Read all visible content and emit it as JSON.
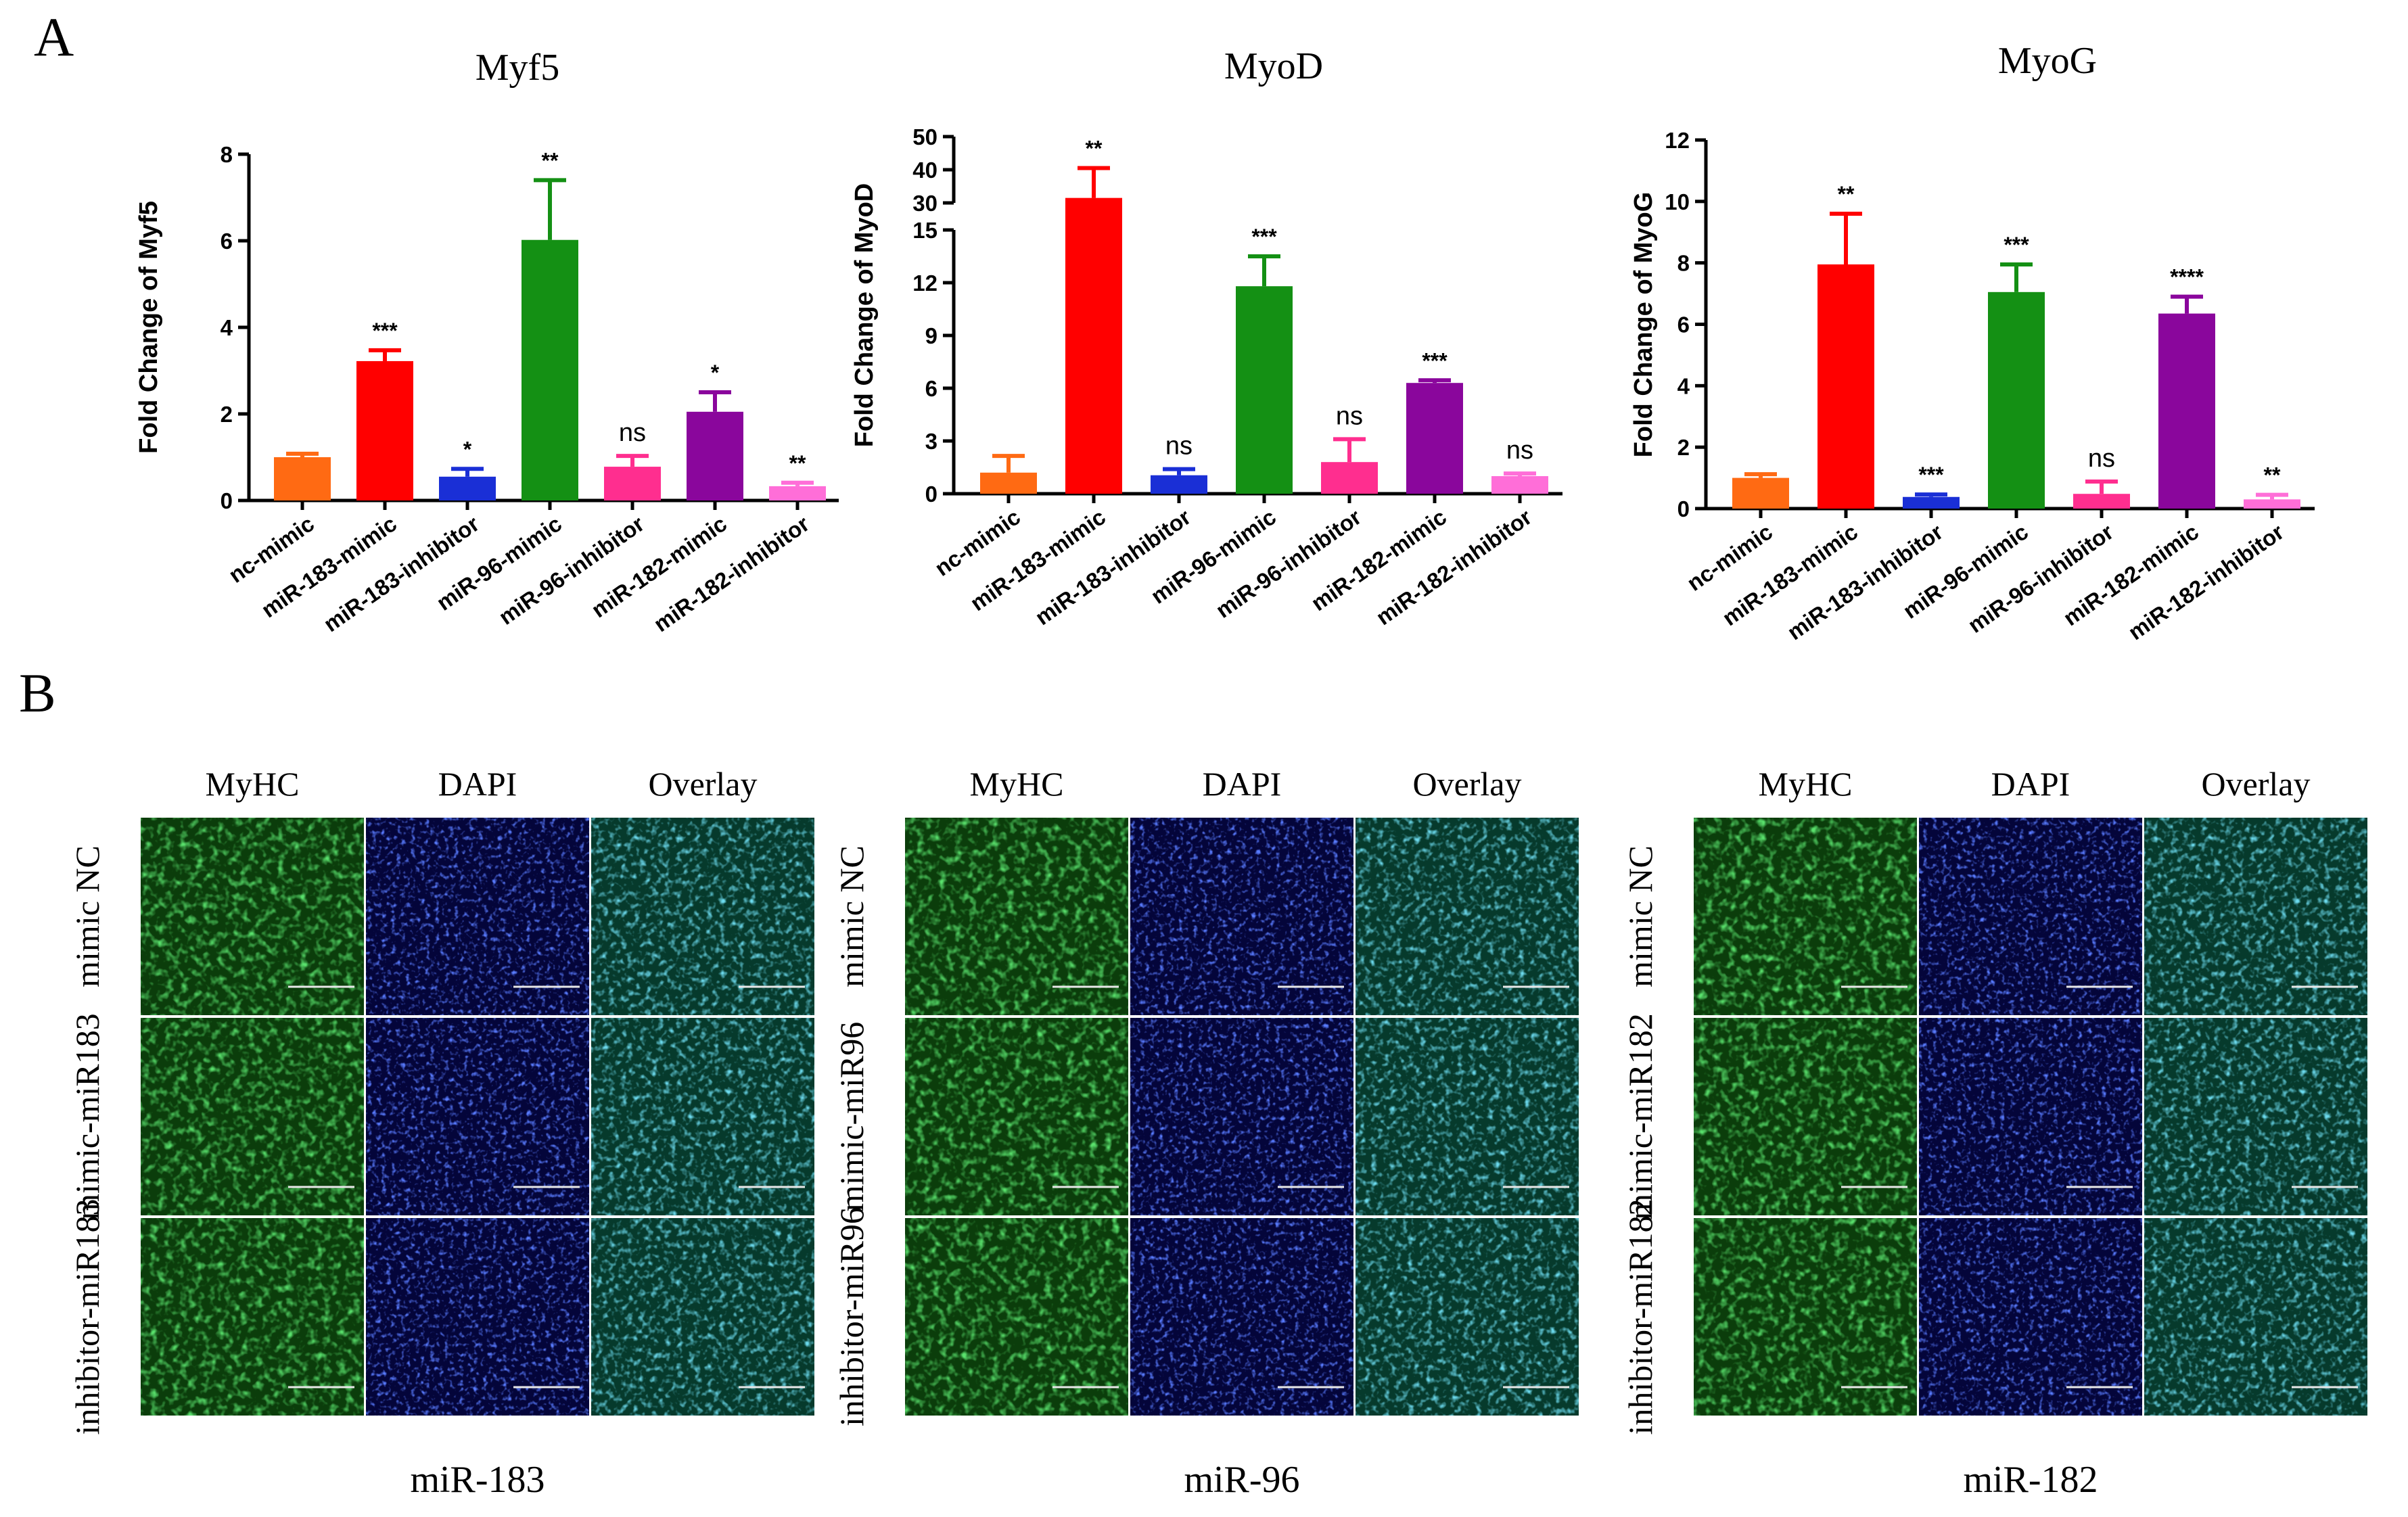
{
  "panels": {
    "a": "A",
    "b": "B"
  },
  "colors": {
    "nc_mimic": "#ff6a13",
    "mir183_mimic": "#ff0000",
    "mir183_inhibitor": "#1a2fd6",
    "mir96_mimic": "#149014",
    "mir96_inhibitor": "#ff2e8f",
    "mir182_mimic": "#8a069c",
    "mir182_inhibitor": "#ff6ed8",
    "myhc": "#1c9e1c",
    "dapi": "#1126c8",
    "overlay": "#1a8a6a"
  },
  "chart_data": [
    {
      "type": "bar",
      "title": "Myf5",
      "ylabel": "Fold Change of Myf5",
      "xlabel": "",
      "ylim": [
        0,
        8
      ],
      "ticks": [
        "0",
        "2",
        "4",
        "6",
        "8"
      ],
      "categories": [
        "nc-mimic",
        "miR-183-mimic",
        "miR-183-inhibitor",
        "miR-96-mimic",
        "miR-96-inhibitor",
        "miR-182-mimic",
        "miR-182-inhibitor"
      ],
      "values": [
        1.0,
        3.22,
        0.55,
        6.02,
        0.78,
        2.05,
        0.33
      ],
      "errors": [
        0.08,
        0.25,
        0.18,
        1.38,
        0.25,
        0.45,
        0.08
      ],
      "significance": [
        "",
        "***",
        "*",
        "**",
        "ns",
        "*",
        "**"
      ]
    },
    {
      "type": "bar",
      "title": "MyoD",
      "ylabel": "Fold Change of MyoD",
      "xlabel": "",
      "broken_axis": true,
      "ylim_lower": [
        0,
        15
      ],
      "ylim_upper": [
        30,
        50
      ],
      "ticks_lower": [
        "0",
        "3",
        "6",
        "9",
        "12",
        "15"
      ],
      "ticks_upper": [
        "30",
        "40",
        "50"
      ],
      "categories": [
        "nc-mimic",
        "miR-183-mimic",
        "miR-183-inhibitor",
        "miR-96-mimic",
        "miR-96-inhibitor",
        "miR-182-mimic",
        "miR-182-inhibitor"
      ],
      "values": [
        1.2,
        31.5,
        1.05,
        11.8,
        1.8,
        6.3,
        1.0
      ],
      "errors": [
        0.95,
        9.0,
        0.35,
        1.7,
        1.3,
        0.15,
        0.15
      ],
      "significance": [
        "",
        "**",
        "ns",
        "***",
        "ns",
        "***",
        "ns"
      ]
    },
    {
      "type": "bar",
      "title": "MyoG",
      "ylabel": "Fold Change of MyoG",
      "xlabel": "",
      "ylim": [
        0,
        12
      ],
      "ticks": [
        "0",
        "2",
        "4",
        "6",
        "8",
        "10",
        "12"
      ],
      "categories": [
        "nc-mimic",
        "miR-183-mimic",
        "miR-183-inhibitor",
        "miR-96-mimic",
        "miR-96-inhibitor",
        "miR-182-mimic",
        "miR-182-inhibitor"
      ],
      "values": [
        1.0,
        7.95,
        0.38,
        7.05,
        0.48,
        6.35,
        0.3
      ],
      "errors": [
        0.12,
        1.65,
        0.08,
        0.9,
        0.4,
        0.55,
        0.15
      ],
      "significance": [
        "",
        "**",
        "***",
        "***",
        "ns",
        "****",
        "**"
      ]
    }
  ],
  "micrographs": {
    "column_headers": [
      "MyHC",
      "DAPI",
      "Overlay"
    ],
    "groups": [
      {
        "label": "miR-183",
        "rows": [
          "mimic NC",
          "mimic-miR183",
          "inhibitor-miR183"
        ]
      },
      {
        "label": "miR-96",
        "rows": [
          "mimic NC",
          "mimic-miR96",
          "inhibitor-miR96"
        ]
      },
      {
        "label": "miR-182",
        "rows": [
          "mimic NC",
          "mimic-miR182",
          "inhibitor-miR182"
        ]
      }
    ]
  }
}
